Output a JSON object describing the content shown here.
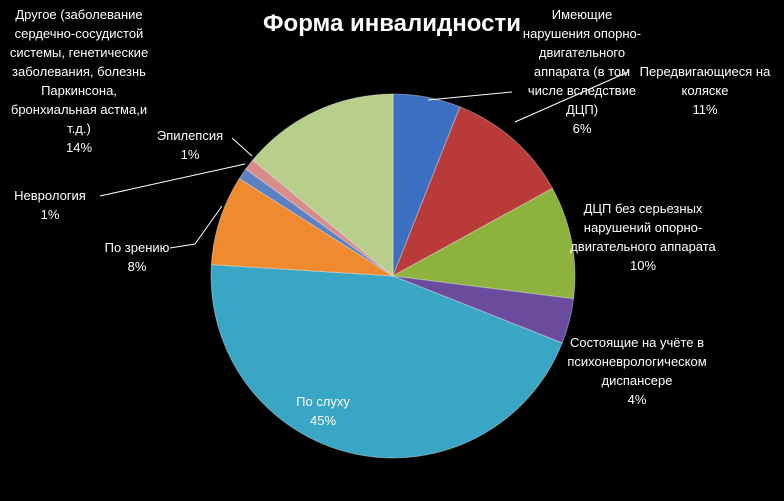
{
  "chart_data": {
    "type": "pie",
    "title": "Форма инвалидности",
    "categories": [
      "Имеющие нарушения опорно-двигательного аппарата (в том числе вследствие ДЦП)",
      "Передвигающиеся на коляске",
      "ДЦП без серьезных нарушений опорно-двигательного аппарата",
      "Состоящие на учёте в психоневрологическом диспансере",
      "По слуху",
      "По зрению",
      "Неврология",
      "Эпилепсия",
      "Другое (заболевание сердечно-сосудистой системы, генетические заболевания, болезнь Паркинсона, бронхиальная астма,и т.д.)"
    ],
    "values": [
      6,
      11,
      10,
      4,
      45,
      8,
      1,
      1,
      14
    ],
    "value_labels": [
      "6%",
      "11%",
      "10%",
      "4%",
      "45%",
      "8%",
      "1%",
      "1%",
      "14%"
    ],
    "colors": [
      "#3b6fc2",
      "#b93a38",
      "#8db33e",
      "#6b4b9d",
      "#3aa6c6",
      "#ef8a2e",
      "#5c80c2",
      "#d98d8b",
      "#b7cf8b"
    ]
  }
}
